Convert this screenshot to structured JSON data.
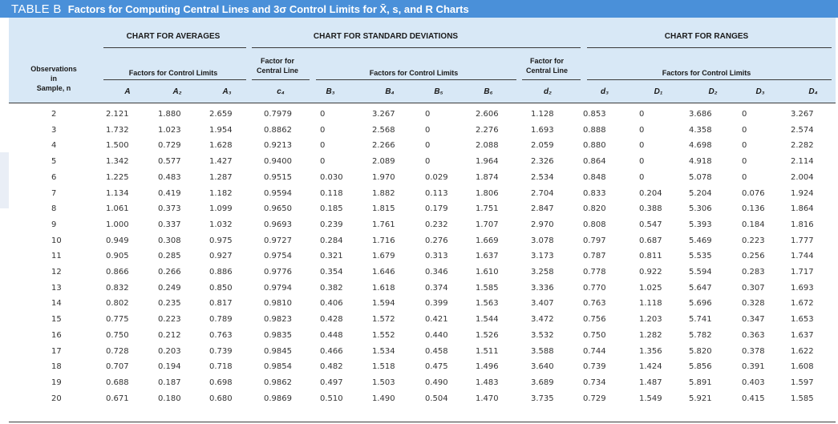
{
  "title": {
    "tag": "TABLE B",
    "text": "Factors for Computing Central Lines and 3σ Control Limits for X̄, s, and R Charts"
  },
  "groups": {
    "averages": "CHART FOR AVERAGES",
    "std": "CHART FOR STANDARD DEVIATIONS",
    "ranges": "CHART FOR RANGES"
  },
  "subheads": {
    "observations": [
      "Observations",
      "in",
      "Sample, n"
    ],
    "avg_limits": "Factors for Control Limits",
    "std_central": [
      "Factor for",
      "Central Line"
    ],
    "std_limits": "Factors for Control Limits",
    "rng_central": [
      "Factor for",
      "Central Line"
    ],
    "rng_limits": "Factors for Control Limits"
  },
  "columns": [
    "A",
    "A₂",
    "A₃",
    "c₄",
    "B₃",
    "B₄",
    "B₅",
    "B₆",
    "d₂",
    "d₃",
    "D₁",
    "D₂",
    "D₃",
    "D₄"
  ],
  "rows": [
    [
      "2",
      "2.121",
      "1.880",
      "2.659",
      "0.7979",
      "0",
      "3.267",
      "0",
      "2.606",
      "1.128",
      "0.853",
      "0",
      "3.686",
      "0",
      "3.267"
    ],
    [
      "3",
      "1.732",
      "1.023",
      "1.954",
      "0.8862",
      "0",
      "2.568",
      "0",
      "2.276",
      "1.693",
      "0.888",
      "0",
      "4.358",
      "0",
      "2.574"
    ],
    [
      "4",
      "1.500",
      "0.729",
      "1.628",
      "0.9213",
      "0",
      "2.266",
      "0",
      "2.088",
      "2.059",
      "0.880",
      "0",
      "4.698",
      "0",
      "2.282"
    ],
    [
      "5",
      "1.342",
      "0.577",
      "1.427",
      "0.9400",
      "0",
      "2.089",
      "0",
      "1.964",
      "2.326",
      "0.864",
      "0",
      "4.918",
      "0",
      "2.114"
    ],
    [
      "6",
      "1.225",
      "0.483",
      "1.287",
      "0.9515",
      "0.030",
      "1.970",
      "0.029",
      "1.874",
      "2.534",
      "0.848",
      "0",
      "5.078",
      "0",
      "2.004"
    ],
    [
      "7",
      "1.134",
      "0.419",
      "1.182",
      "0.9594",
      "0.118",
      "1.882",
      "0.113",
      "1.806",
      "2.704",
      "0.833",
      "0.204",
      "5.204",
      "0.076",
      "1.924"
    ],
    [
      "8",
      "1.061",
      "0.373",
      "1.099",
      "0.9650",
      "0.185",
      "1.815",
      "0.179",
      "1.751",
      "2.847",
      "0.820",
      "0.388",
      "5.306",
      "0.136",
      "1.864"
    ],
    [
      "9",
      "1.000",
      "0.337",
      "1.032",
      "0.9693",
      "0.239",
      "1.761",
      "0.232",
      "1.707",
      "2.970",
      "0.808",
      "0.547",
      "5.393",
      "0.184",
      "1.816"
    ],
    [
      "10",
      "0.949",
      "0.308",
      "0.975",
      "0.9727",
      "0.284",
      "1.716",
      "0.276",
      "1.669",
      "3.078",
      "0.797",
      "0.687",
      "5.469",
      "0.223",
      "1.777"
    ],
    [
      "11",
      "0.905",
      "0.285",
      "0.927",
      "0.9754",
      "0.321",
      "1.679",
      "0.313",
      "1.637",
      "3.173",
      "0.787",
      "0.811",
      "5.535",
      "0.256",
      "1.744"
    ],
    [
      "12",
      "0.866",
      "0.266",
      "0.886",
      "0.9776",
      "0.354",
      "1.646",
      "0.346",
      "1.610",
      "3.258",
      "0.778",
      "0.922",
      "5.594",
      "0.283",
      "1.717"
    ],
    [
      "13",
      "0.832",
      "0.249",
      "0.850",
      "0.9794",
      "0.382",
      "1.618",
      "0.374",
      "1.585",
      "3.336",
      "0.770",
      "1.025",
      "5.647",
      "0.307",
      "1.693"
    ],
    [
      "14",
      "0.802",
      "0.235",
      "0.817",
      "0.9810",
      "0.406",
      "1.594",
      "0.399",
      "1.563",
      "3.407",
      "0.763",
      "1.118",
      "5.696",
      "0.328",
      "1.672"
    ],
    [
      "15",
      "0.775",
      "0.223",
      "0.789",
      "0.9823",
      "0.428",
      "1.572",
      "0.421",
      "1.544",
      "3.472",
      "0.756",
      "1.203",
      "5.741",
      "0.347",
      "1.653"
    ],
    [
      "16",
      "0.750",
      "0.212",
      "0.763",
      "0.9835",
      "0.448",
      "1.552",
      "0.440",
      "1.526",
      "3.532",
      "0.750",
      "1.282",
      "5.782",
      "0.363",
      "1.637"
    ],
    [
      "17",
      "0.728",
      "0.203",
      "0.739",
      "0.9845",
      "0.466",
      "1.534",
      "0.458",
      "1.511",
      "3.588",
      "0.744",
      "1.356",
      "5.820",
      "0.378",
      "1.622"
    ],
    [
      "18",
      "0.707",
      "0.194",
      "0.718",
      "0.9854",
      "0.482",
      "1.518",
      "0.475",
      "1.496",
      "3.640",
      "0.739",
      "1.424",
      "5.856",
      "0.391",
      "1.608"
    ],
    [
      "19",
      "0.688",
      "0.187",
      "0.698",
      "0.9862",
      "0.497",
      "1.503",
      "0.490",
      "1.483",
      "3.689",
      "0.734",
      "1.487",
      "5.891",
      "0.403",
      "1.597"
    ],
    [
      "20",
      "0.671",
      "0.180",
      "0.680",
      "0.9869",
      "0.510",
      "1.490",
      "0.504",
      "1.470",
      "3.735",
      "0.729",
      "1.549",
      "5.921",
      "0.415",
      "1.585"
    ]
  ]
}
